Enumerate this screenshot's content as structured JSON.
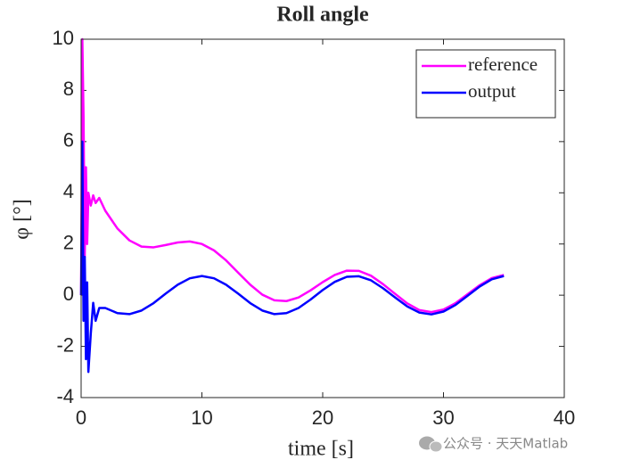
{
  "chart_data": {
    "type": "line",
    "title": "Roll angle",
    "xlabel": "time [s]",
    "ylabel": "φ [°]",
    "x": [
      0,
      0.1,
      0.2,
      0.3,
      0.4,
      0.5,
      0.6,
      0.8,
      1,
      1.2,
      1.5,
      2,
      3,
      4,
      5,
      6,
      7,
      8,
      9,
      10,
      11,
      12,
      13,
      14,
      15,
      16,
      17,
      18,
      19,
      20,
      21,
      22,
      23,
      24,
      25,
      26,
      27,
      28,
      29,
      30,
      31,
      32,
      33,
      34,
      35
    ],
    "series": [
      {
        "name": "reference",
        "color": "#ff00ff",
        "values": [
          0,
          10,
          7,
          1.5,
          5,
          2,
          4,
          3.5,
          3.9,
          3.6,
          3.8,
          3.3,
          2.61,
          2.14,
          1.9,
          1.87,
          1.96,
          2.06,
          2.1,
          2.0,
          1.75,
          1.36,
          0.88,
          0.41,
          0.02,
          -0.2,
          -0.23,
          -0.09,
          0.19,
          0.51,
          0.79,
          0.96,
          0.95,
          0.76,
          0.43,
          0.05,
          -0.32,
          -0.58,
          -0.66,
          -0.56,
          -0.31,
          0.04,
          0.39,
          0.67,
          0.79
        ]
      },
      {
        "name": "output",
        "color": "#0000ff",
        "values": [
          0,
          6,
          -1,
          1.5,
          -2.5,
          0.5,
          -3,
          -1.5,
          -0.3,
          -1.0,
          -0.5,
          -0.5,
          -0.7,
          -0.74,
          -0.6,
          -0.31,
          0.06,
          0.41,
          0.66,
          0.75,
          0.66,
          0.41,
          0.06,
          -0.31,
          -0.6,
          -0.74,
          -0.7,
          -0.5,
          -0.17,
          0.2,
          0.52,
          0.72,
          0.74,
          0.58,
          0.27,
          -0.09,
          -0.44,
          -0.68,
          -0.75,
          -0.64,
          -0.38,
          -0.02,
          0.34,
          0.62,
          0.75
        ]
      }
    ],
    "xlim": [
      0,
      40
    ],
    "xticks": [
      0,
      10,
      20,
      30,
      40
    ],
    "ylim": [
      -4,
      10
    ],
    "yticks": [
      -4,
      -2,
      0,
      2,
      4,
      6,
      8,
      10
    ],
    "legend": "northeast",
    "grid": false,
    "watermark": "公众号 · 天天Matlab"
  }
}
